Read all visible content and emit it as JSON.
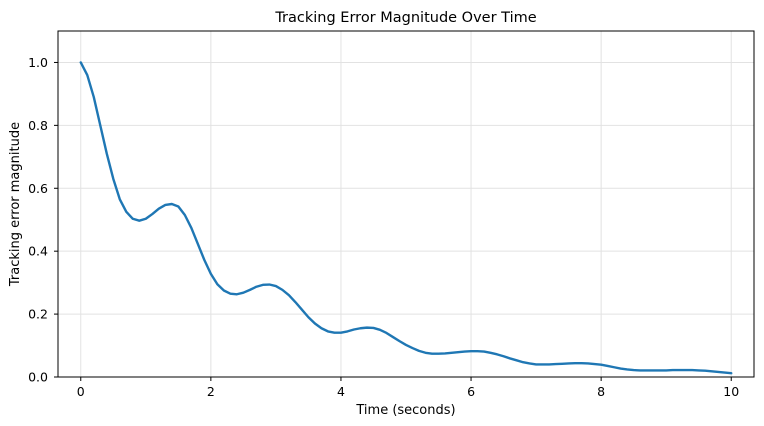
{
  "chart_data": {
    "type": "line",
    "title": "Tracking Error Magnitude Over Time",
    "xlabel": "Time (seconds)",
    "ylabel": "Tracking error magnitude",
    "xlim": [
      -0.35,
      10.35
    ],
    "ylim": [
      0.0,
      1.1
    ],
    "xticks": [
      0,
      2,
      4,
      6,
      8,
      10
    ],
    "yticks": [
      0.0,
      0.2,
      0.4,
      0.6,
      0.8,
      1.0
    ],
    "xtick_labels": [
      "0",
      "2",
      "4",
      "6",
      "8",
      "10"
    ],
    "ytick_labels": [
      "0.0",
      "0.2",
      "0.4",
      "0.6",
      "0.8",
      "1.0"
    ],
    "grid": true,
    "line_color": "#1f77b4",
    "series": [
      {
        "x": [
          0.0,
          0.1,
          0.2,
          0.3,
          0.4,
          0.5,
          0.6,
          0.7,
          0.8,
          0.9,
          1.0,
          1.1,
          1.2,
          1.3,
          1.4,
          1.5,
          1.6,
          1.7,
          1.8,
          1.9,
          2.0,
          2.1,
          2.2,
          2.3,
          2.4,
          2.5,
          2.6,
          2.7,
          2.8,
          2.9,
          3.0,
          3.1,
          3.2,
          3.3,
          3.4,
          3.5,
          3.6,
          3.7,
          3.8,
          3.9,
          4.0,
          4.1,
          4.2,
          4.3,
          4.4,
          4.5,
          4.6,
          4.7,
          4.8,
          4.9,
          5.0,
          5.1,
          5.2,
          5.3,
          5.4,
          5.5,
          5.6,
          5.7,
          5.8,
          5.9,
          6.0,
          6.1,
          6.2,
          6.3,
          6.4,
          6.5,
          6.6,
          6.7,
          6.8,
          6.9,
          7.0,
          7.1,
          7.2,
          7.3,
          7.4,
          7.5,
          7.6,
          7.7,
          7.8,
          7.9,
          8.0,
          8.1,
          8.2,
          8.3,
          8.4,
          8.5,
          8.6,
          8.7,
          8.8,
          8.9,
          9.0,
          9.1,
          9.2,
          9.3,
          9.4,
          9.5,
          9.6,
          9.7,
          9.8,
          9.9,
          10.0
        ],
        "values": [
          1.0,
          0.96,
          0.89,
          0.8,
          0.71,
          0.63,
          0.565,
          0.525,
          0.503,
          0.497,
          0.503,
          0.518,
          0.535,
          0.547,
          0.55,
          0.542,
          0.515,
          0.474,
          0.423,
          0.372,
          0.328,
          0.295,
          0.275,
          0.265,
          0.263,
          0.268,
          0.277,
          0.287,
          0.293,
          0.294,
          0.289,
          0.277,
          0.26,
          0.238,
          0.214,
          0.19,
          0.17,
          0.155,
          0.145,
          0.141,
          0.141,
          0.145,
          0.151,
          0.155,
          0.157,
          0.156,
          0.15,
          0.14,
          0.127,
          0.114,
          0.102,
          0.092,
          0.083,
          0.077,
          0.074,
          0.074,
          0.075,
          0.077,
          0.079,
          0.081,
          0.082,
          0.082,
          0.081,
          0.077,
          0.072,
          0.066,
          0.059,
          0.053,
          0.047,
          0.043,
          0.04,
          0.04,
          0.04,
          0.041,
          0.042,
          0.043,
          0.044,
          0.044,
          0.043,
          0.041,
          0.039,
          0.035,
          0.031,
          0.027,
          0.024,
          0.022,
          0.021,
          0.021,
          0.021,
          0.021,
          0.021,
          0.022,
          0.022,
          0.022,
          0.022,
          0.021,
          0.02,
          0.018,
          0.016,
          0.014,
          0.012
        ]
      }
    ]
  }
}
